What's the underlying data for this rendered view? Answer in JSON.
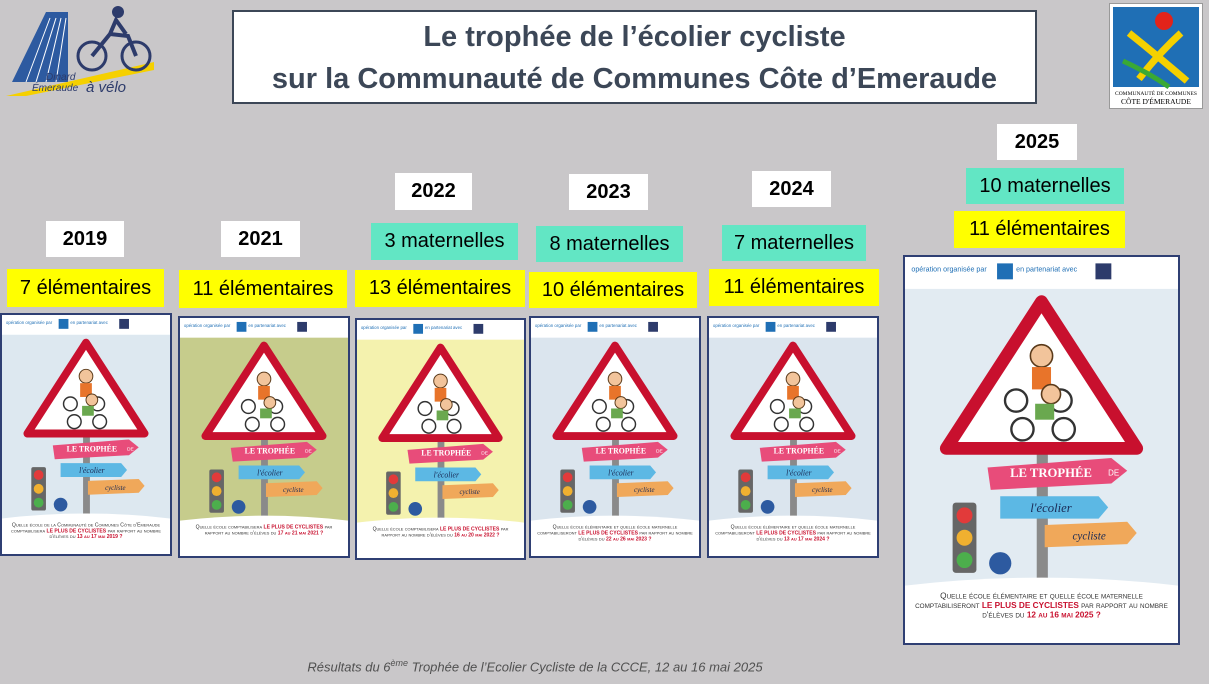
{
  "header": {
    "title_line1": "Le trophée de l’écolier cycliste",
    "title_line2": "sur la Communauté de Communes Côte d’Emeraude"
  },
  "logo_left": {
    "line1": "Dinard",
    "line2": "Émeraude",
    "line3": "à vélo"
  },
  "logo_right": {
    "line1": "COMMUNAUTÉ DE COMMUNES",
    "line2": "CÔTE D'ÉMERAUDE"
  },
  "poster_title": {
    "line1": "LE TROPHÉE",
    "line1b": "DE",
    "line2": "l'écolier",
    "line3": "cycliste"
  },
  "poster_header": {
    "organised": "opération organisée par",
    "partner": "en partenariat avec"
  },
  "editions": [
    {
      "year": "2019",
      "elementaires": "7 élémentaires",
      "question": {
        "before": "Quelle école de la Communauté de Communes Côte d'Emeraude comptabilisera",
        "highlight": "LE PLUS DE CYCLISTES",
        "after": "par rapport au nombre d'élèves du",
        "dates": "13 au 17 mai 2019 ?"
      }
    },
    {
      "year": "2021",
      "elementaires": "11 élémentaires",
      "question": {
        "before": "Quelle école comptabilisera",
        "highlight": "LE PLUS DE CYCLISTES",
        "after": "par rapport au nombre d'élèves du",
        "dates": "17 au 21 mai 2021 ?"
      }
    },
    {
      "year": "2022",
      "maternelles": "3 maternelles",
      "elementaires": "13 élémentaires",
      "question": {
        "before": "Quelle école comptabilisera",
        "highlight": "LE PLUS DE CYCLISTES",
        "after": "par rapport au nombre d'élèves du",
        "dates": "16 au 20 mai 2022 ?"
      }
    },
    {
      "year": "2023",
      "maternelles": "8 maternelles",
      "elementaires": "10 élémentaires",
      "question": {
        "before": "Quelle école élémentaire et quelle école maternelle comptabiliseront",
        "highlight": "LE PLUS DE CYCLISTES",
        "after": "par rapport au nombre d'élèves du",
        "dates": "22 au 26 mai 2023 ?"
      }
    },
    {
      "year": "2024",
      "maternelles": "7 maternelles",
      "elementaires": "11 élémentaires",
      "question": {
        "before": "Quelle école élémentaire et quelle école maternelle comptabiliseront",
        "highlight": "LE PLUS DE CYCLISTES",
        "after": "par rapport au nombre d'élèves du",
        "dates": "13 au 17 mai 2024 ?"
      }
    },
    {
      "year": "2025",
      "maternelles": "10 maternelles",
      "elementaires": "11 élémentaires",
      "question": {
        "before": "Quelle école élémentaire et quelle école maternelle comptabiliseront",
        "highlight": "LE PLUS DE CYCLISTES",
        "after": "par rapport au nombre d'élèves du",
        "dates": "12 au 16 mai 2025 ?"
      }
    }
  ],
  "footer": {
    "before": "Résultats du 6",
    "sup": "ème",
    "after": " Trophée de l’Ecolier Cycliste de la CCCE, 12 au 16 mai 2025"
  }
}
